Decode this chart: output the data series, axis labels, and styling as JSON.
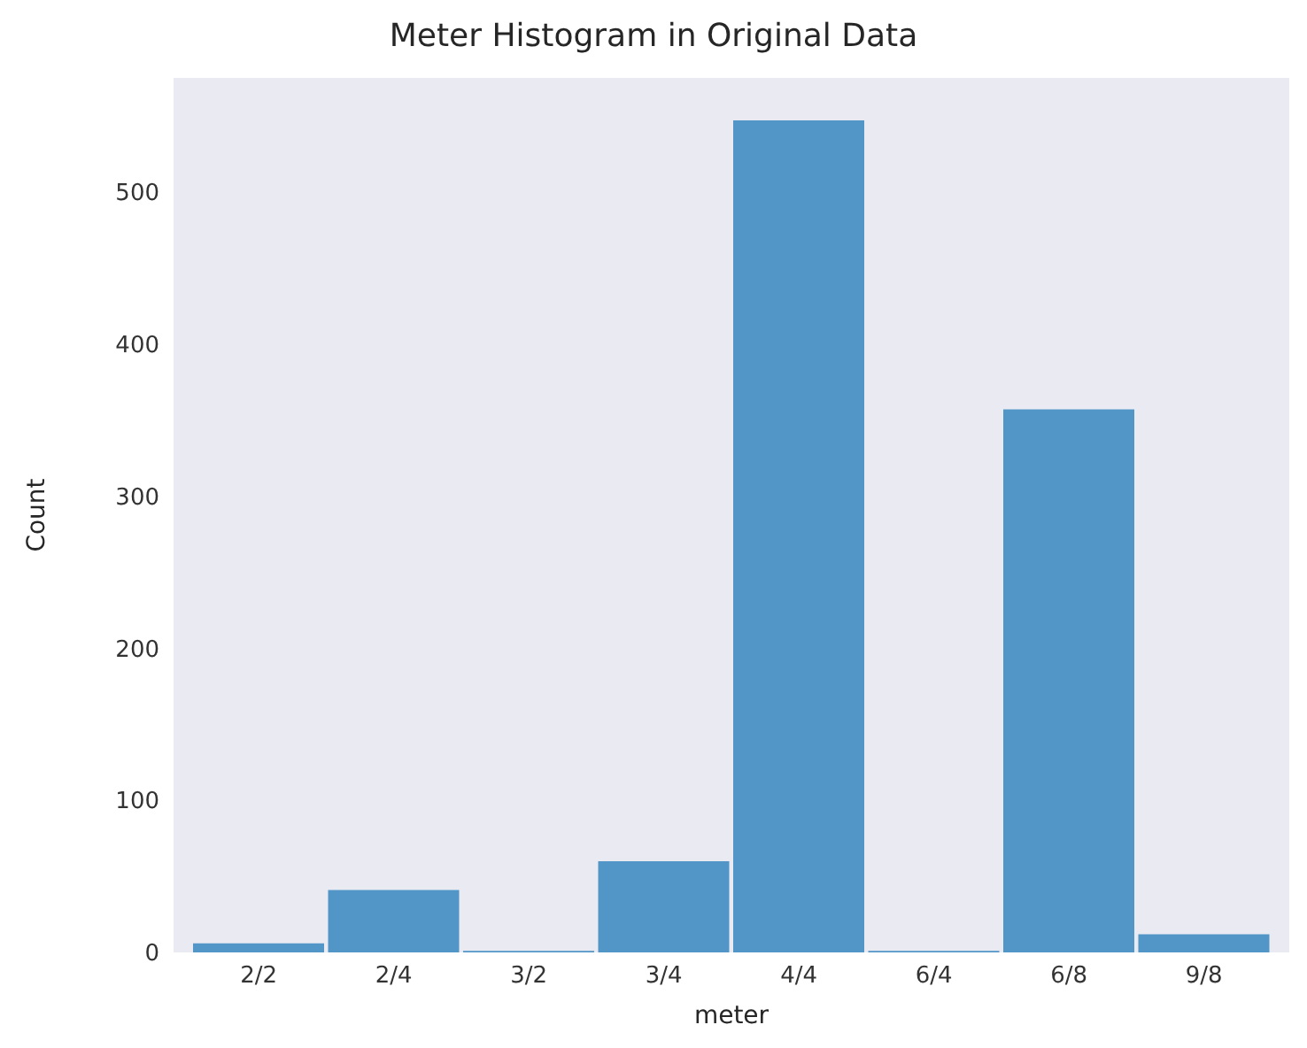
{
  "chart_data": {
    "type": "bar",
    "title": "Meter Histogram in Original Data",
    "xlabel": "meter",
    "ylabel": "Count",
    "categories": [
      "2/2",
      "2/4",
      "3/2",
      "3/4",
      "4/4",
      "6/4",
      "6/8",
      "9/8"
    ],
    "values": [
      6,
      41,
      1,
      60,
      547,
      1,
      357,
      12
    ],
    "color": "#5196c6",
    "ylim": [
      0,
      575
    ],
    "yticks": [
      0,
      100,
      200,
      300,
      400,
      500
    ],
    "grid": false
  }
}
